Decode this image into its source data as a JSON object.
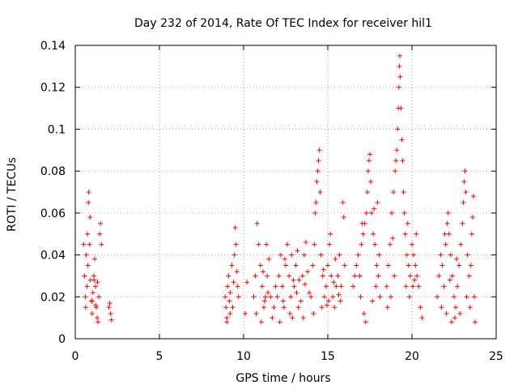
{
  "chart_data": {
    "type": "scatter",
    "title": "Day 232 of 2014, Rate Of TEC Index for receiver hil1",
    "xlabel": "GPS time / hours",
    "ylabel": "ROTI / TECUs",
    "xlim": [
      0,
      25
    ],
    "ylim": [
      0,
      0.14
    ],
    "xticks": [
      "0",
      "5",
      "10",
      "15",
      "20",
      "25"
    ],
    "yticks": [
      "0",
      "0.02",
      "0.04",
      "0.06",
      "0.08",
      "0.1",
      "0.12",
      "0.14"
    ],
    "grid": true,
    "marker": "+",
    "color": "#ff0000",
    "series": [
      {
        "name": "hil1",
        "points": [
          [
            0.5,
            0.045
          ],
          [
            0.55,
            0.03
          ],
          [
            0.6,
            0.02
          ],
          [
            0.62,
            0.015
          ],
          [
            0.7,
            0.025
          ],
          [
            0.75,
            0.035
          ],
          [
            0.78,
            0.065
          ],
          [
            0.8,
            0.07
          ],
          [
            0.85,
            0.045
          ],
          [
            0.9,
            0.028
          ],
          [
            0.95,
            0.018
          ],
          [
            1.0,
            0.012
          ],
          [
            1.05,
            0.022
          ],
          [
            1.1,
            0.03
          ],
          [
            1.15,
            0.038
          ],
          [
            1.2,
            0.025
          ],
          [
            1.25,
            0.015
          ],
          [
            1.3,
            0.01
          ],
          [
            1.35,
            0.008
          ],
          [
            1.4,
            0.02
          ],
          [
            1.45,
            0.05
          ],
          [
            1.5,
            0.055
          ],
          [
            1.55,
            0.045
          ],
          [
            0.65,
            0.04
          ],
          [
            0.72,
            0.05
          ],
          [
            0.88,
            0.058
          ],
          [
            1.02,
            0.018
          ],
          [
            1.12,
            0.028
          ],
          [
            1.22,
            0.016
          ],
          [
            1.32,
            0.027
          ],
          [
            2.05,
            0.017
          ],
          [
            2.1,
            0.012
          ],
          [
            2.15,
            0.009
          ],
          [
            2.0,
            0.015
          ],
          [
            8.9,
            0.02
          ],
          [
            8.95,
            0.015
          ],
          [
            9.0,
            0.01
          ],
          [
            9.05,
            0.025
          ],
          [
            9.1,
            0.03
          ],
          [
            9.15,
            0.018
          ],
          [
            9.2,
            0.022
          ],
          [
            9.3,
            0.035
          ],
          [
            9.4,
            0.027
          ],
          [
            9.45,
            0.04
          ],
          [
            9.5,
            0.053
          ],
          [
            9.55,
            0.045
          ],
          [
            9.6,
            0.032
          ],
          [
            9.65,
            0.025
          ],
          [
            9.7,
            0.02
          ],
          [
            9.2,
            0.012
          ],
          [
            9.35,
            0.015
          ],
          [
            9.0,
            0.008
          ],
          [
            10.1,
            0.012
          ],
          [
            10.2,
            0.027
          ],
          [
            10.6,
            0.02
          ],
          [
            10.7,
            0.03
          ],
          [
            10.8,
            0.055
          ],
          [
            10.9,
            0.045
          ],
          [
            11.0,
            0.035
          ],
          [
            11.1,
            0.025
          ],
          [
            11.2,
            0.015
          ],
          [
            11.3,
            0.02
          ],
          [
            11.4,
            0.03
          ],
          [
            11.5,
            0.038
          ],
          [
            11.6,
            0.02
          ],
          [
            11.7,
            0.01
          ],
          [
            11.8,
            0.015
          ],
          [
            11.9,
            0.025
          ],
          [
            10.75,
            0.012
          ],
          [
            11.05,
            0.008
          ],
          [
            11.35,
            0.045
          ],
          [
            11.15,
            0.032
          ],
          [
            11.45,
            0.022
          ],
          [
            11.25,
            0.018
          ],
          [
            12.0,
            0.02
          ],
          [
            12.1,
            0.03
          ],
          [
            12.2,
            0.04
          ],
          [
            12.3,
            0.025
          ],
          [
            12.4,
            0.015
          ],
          [
            12.5,
            0.035
          ],
          [
            12.6,
            0.045
          ],
          [
            12.7,
            0.03
          ],
          [
            12.8,
            0.02
          ],
          [
            12.9,
            0.01
          ],
          [
            13.0,
            0.025
          ],
          [
            13.1,
            0.035
          ],
          [
            13.2,
            0.042
          ],
          [
            13.3,
            0.028
          ],
          [
            13.4,
            0.018
          ],
          [
            13.5,
            0.03
          ],
          [
            13.6,
            0.04
          ],
          [
            13.7,
            0.046
          ],
          [
            13.8,
            0.032
          ],
          [
            13.9,
            0.022
          ],
          [
            12.15,
            0.008
          ],
          [
            12.75,
            0.012
          ],
          [
            13.25,
            0.015
          ],
          [
            13.55,
            0.01
          ],
          [
            12.45,
            0.038
          ],
          [
            12.95,
            0.028
          ],
          [
            13.15,
            0.022
          ],
          [
            13.65,
            0.026
          ],
          [
            12.35,
            0.018
          ],
          [
            12.85,
            0.04
          ],
          [
            14.0,
            0.02
          ],
          [
            14.1,
            0.035
          ],
          [
            14.2,
            0.045
          ],
          [
            14.25,
            0.06
          ],
          [
            14.3,
            0.065
          ],
          [
            14.35,
            0.075
          ],
          [
            14.4,
            0.08
          ],
          [
            14.45,
            0.085
          ],
          [
            14.5,
            0.09
          ],
          [
            14.55,
            0.07
          ],
          [
            14.6,
            0.04
          ],
          [
            14.7,
            0.03
          ],
          [
            14.8,
            0.02
          ],
          [
            14.9,
            0.025
          ],
          [
            15.0,
            0.035
          ],
          [
            15.1,
            0.045
          ],
          [
            15.2,
            0.03
          ],
          [
            15.3,
            0.02
          ],
          [
            15.4,
            0.015
          ],
          [
            15.5,
            0.025
          ],
          [
            15.6,
            0.03
          ],
          [
            15.7,
            0.04
          ],
          [
            15.8,
            0.025
          ],
          [
            15.9,
            0.065
          ],
          [
            15.95,
            0.058
          ],
          [
            16.0,
            0.035
          ],
          [
            14.15,
            0.012
          ],
          [
            14.65,
            0.015
          ],
          [
            15.05,
            0.018
          ],
          [
            15.35,
            0.027
          ],
          [
            15.65,
            0.021
          ],
          [
            15.15,
            0.05
          ],
          [
            14.75,
            0.033
          ],
          [
            15.45,
            0.038
          ],
          [
            14.95,
            0.016
          ],
          [
            15.75,
            0.018
          ],
          [
            16.5,
            0.025
          ],
          [
            16.6,
            0.03
          ],
          [
            16.7,
            0.035
          ],
          [
            16.8,
            0.04
          ],
          [
            16.9,
            0.03
          ],
          [
            16.95,
            0.02
          ],
          [
            17.0,
            0.045
          ],
          [
            17.1,
            0.05
          ],
          [
            17.2,
            0.055
          ],
          [
            17.3,
            0.06
          ],
          [
            17.35,
            0.07
          ],
          [
            17.4,
            0.08
          ],
          [
            17.45,
            0.085
          ],
          [
            17.5,
            0.088
          ],
          [
            17.55,
            0.075
          ],
          [
            17.6,
            0.06
          ],
          [
            17.7,
            0.05
          ],
          [
            17.8,
            0.045
          ],
          [
            17.9,
            0.035
          ],
          [
            18.0,
            0.03
          ],
          [
            18.1,
            0.02
          ],
          [
            17.25,
            0.008
          ],
          [
            17.15,
            0.012
          ],
          [
            17.65,
            0.018
          ],
          [
            17.85,
            0.025
          ],
          [
            17.95,
            0.065
          ],
          [
            18.05,
            0.04
          ],
          [
            17.75,
            0.062
          ],
          [
            17.05,
            0.055
          ],
          [
            18.5,
            0.025
          ],
          [
            18.6,
            0.035
          ],
          [
            18.7,
            0.045
          ],
          [
            18.8,
            0.06
          ],
          [
            18.9,
            0.07
          ],
          [
            19.0,
            0.08
          ],
          [
            19.05,
            0.085
          ],
          [
            19.1,
            0.09
          ],
          [
            19.15,
            0.1
          ],
          [
            19.2,
            0.11
          ],
          [
            19.22,
            0.12
          ],
          [
            19.25,
            0.13
          ],
          [
            19.28,
            0.135
          ],
          [
            19.3,
            0.125
          ],
          [
            19.35,
            0.11
          ],
          [
            19.4,
            0.095
          ],
          [
            19.45,
            0.085
          ],
          [
            19.5,
            0.07
          ],
          [
            19.55,
            0.06
          ],
          [
            19.6,
            0.05
          ],
          [
            19.7,
            0.04
          ],
          [
            19.8,
            0.035
          ],
          [
            19.9,
            0.03
          ],
          [
            20.0,
            0.045
          ],
          [
            20.1,
            0.04
          ],
          [
            20.2,
            0.035
          ],
          [
            20.3,
            0.03
          ],
          [
            20.4,
            0.025
          ],
          [
            20.5,
            0.015
          ],
          [
            20.6,
            0.01
          ],
          [
            18.55,
            0.015
          ],
          [
            18.75,
            0.02
          ],
          [
            18.95,
            0.03
          ],
          [
            19.65,
            0.025
          ],
          [
            19.85,
            0.02
          ],
          [
            20.05,
            0.025
          ],
          [
            20.25,
            0.05
          ],
          [
            18.85,
            0.048
          ],
          [
            19.75,
            0.055
          ],
          [
            20.15,
            0.028
          ],
          [
            21.5,
            0.02
          ],
          [
            21.6,
            0.03
          ],
          [
            21.7,
            0.04
          ],
          [
            21.8,
            0.035
          ],
          [
            21.9,
            0.025
          ],
          [
            22.0,
            0.045
          ],
          [
            22.1,
            0.055
          ],
          [
            22.15,
            0.06
          ],
          [
            22.2,
            0.05
          ],
          [
            22.3,
            0.04
          ],
          [
            22.4,
            0.03
          ],
          [
            22.5,
            0.02
          ],
          [
            22.6,
            0.015
          ],
          [
            22.7,
            0.025
          ],
          [
            22.8,
            0.035
          ],
          [
            22.9,
            0.045
          ],
          [
            23.0,
            0.055
          ],
          [
            23.05,
            0.065
          ],
          [
            23.1,
            0.075
          ],
          [
            23.15,
            0.08
          ],
          [
            23.2,
            0.07
          ],
          [
            23.3,
            0.04
          ],
          [
            23.4,
            0.03
          ],
          [
            23.5,
            0.035
          ],
          [
            23.55,
            0.05
          ],
          [
            23.6,
            0.058
          ],
          [
            23.65,
            0.068
          ],
          [
            23.7,
            0.02
          ],
          [
            23.75,
            0.008
          ],
          [
            22.05,
            0.012
          ],
          [
            22.35,
            0.008
          ],
          [
            22.55,
            0.01
          ],
          [
            22.85,
            0.012
          ],
          [
            23.25,
            0.02
          ],
          [
            23.45,
            0.015
          ],
          [
            21.75,
            0.015
          ],
          [
            22.25,
            0.028
          ],
          [
            22.65,
            0.038
          ],
          [
            21.95,
            0.05
          ]
        ]
      }
    ]
  }
}
